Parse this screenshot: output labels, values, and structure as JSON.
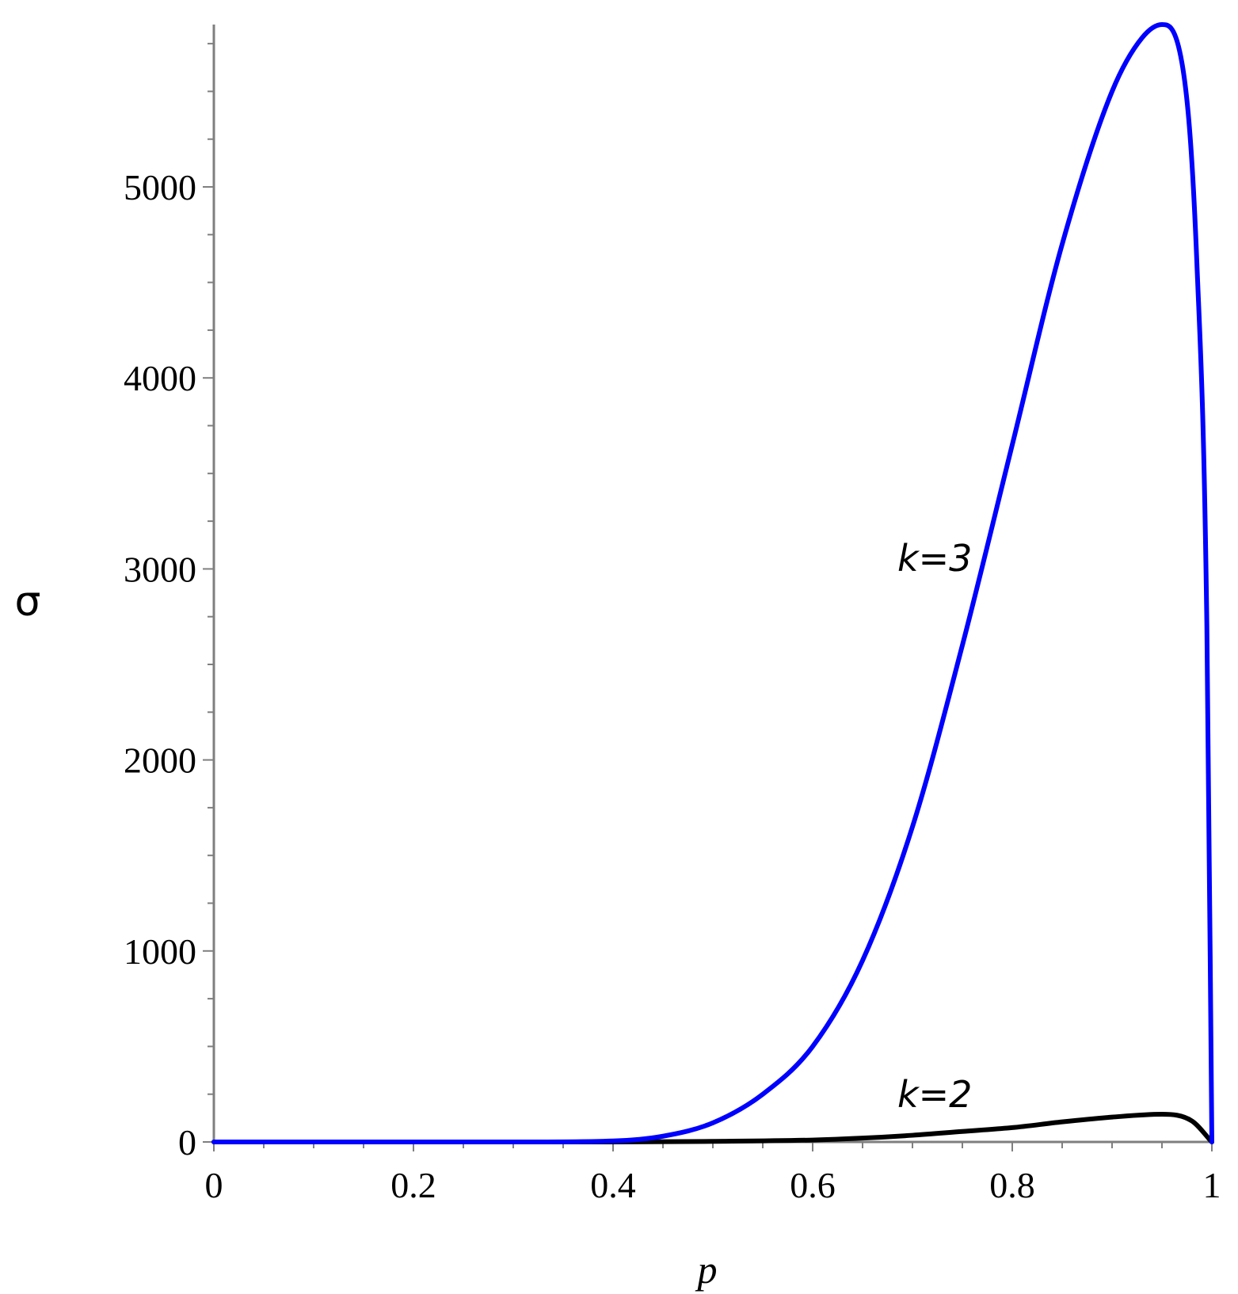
{
  "chart_data": {
    "type": "line",
    "title": "",
    "xlabel": "p",
    "ylabel": "σ",
    "xlim": [
      0,
      1
    ],
    "ylim": [
      0,
      5850
    ],
    "x_ticks": [
      0,
      0.2,
      0.4,
      0.6,
      0.8,
      1
    ],
    "x_tick_labels": [
      "0",
      "0.2",
      "0.4",
      "0.6",
      "0.8",
      "1"
    ],
    "y_ticks": [
      0,
      1000,
      2000,
      3000,
      4000,
      5000
    ],
    "y_tick_labels": [
      "0",
      "1000",
      "2000",
      "3000",
      "4000",
      "5000"
    ],
    "grid": false,
    "series": [
      {
        "name": "k=3",
        "color": "#0000ff",
        "x": [
          0,
          0.3,
          0.4,
          0.45,
          0.5,
          0.55,
          0.6,
          0.65,
          0.7,
          0.75,
          0.8,
          0.85,
          0.9,
          0.93,
          0.95,
          0.97,
          0.985,
          0.995,
          1.0
        ],
        "y": [
          0,
          0,
          5,
          30,
          100,
          250,
          500,
          950,
          1650,
          2600,
          3650,
          4700,
          5500,
          5780,
          5850,
          5650,
          4600,
          2700,
          0
        ]
      },
      {
        "name": "k=2",
        "color": "#000000",
        "x": [
          0,
          0.4,
          0.5,
          0.6,
          0.65,
          0.7,
          0.75,
          0.8,
          0.85,
          0.9,
          0.95,
          0.98,
          1.0
        ],
        "y": [
          0,
          0,
          3,
          10,
          20,
          35,
          55,
          75,
          105,
          130,
          145,
          110,
          0
        ]
      }
    ],
    "annotations": [
      {
        "text": "k=3",
        "series": "k=3"
      },
      {
        "text": "k=2",
        "series": "k=2"
      }
    ]
  }
}
